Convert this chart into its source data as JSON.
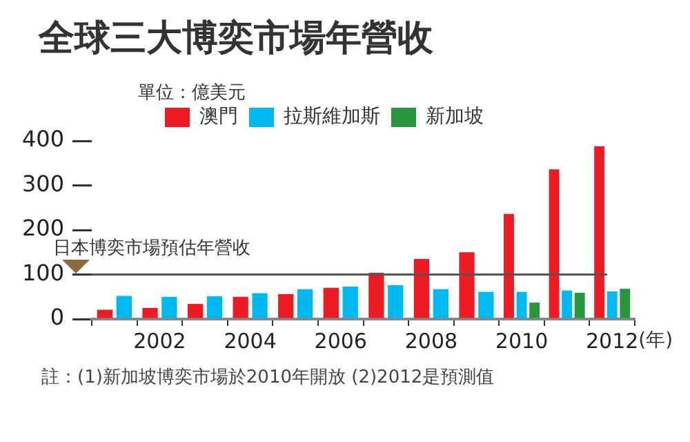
{
  "chart_data": {
    "type": "bar",
    "title": "全球三大博奕市場年營收",
    "subtitle": "單位：億美元",
    "xlabel": "(年)",
    "categories": [
      null,
      "2002",
      null,
      "2004",
      null,
      "2006",
      null,
      "2008",
      null,
      "2010",
      null,
      "2012"
    ],
    "series": [
      {
        "name": "澳門",
        "color": "#ed1c24",
        "values": [
          21,
          25,
          34,
          50,
          56,
          70,
          104,
          135,
          150,
          236,
          336,
          388
        ]
      },
      {
        "name": "拉斯維加斯",
        "color": "#00b9f1",
        "values": [
          52,
          50,
          51,
          58,
          67,
          73,
          76,
          67,
          61,
          61,
          64,
          62
        ]
      },
      {
        "name": "新加坡",
        "color": "#27963c",
        "values": [
          null,
          null,
          null,
          null,
          null,
          null,
          null,
          null,
          null,
          37,
          59,
          68
        ]
      }
    ],
    "ylim": [
      0,
      400
    ],
    "yticks": [
      0,
      100,
      200,
      300,
      400
    ],
    "grid": false,
    "legend": "top",
    "ref_lines": [
      {
        "axis": "y",
        "value": 100,
        "label": "日本博奕市場預估年營收",
        "color": "#555555"
      }
    ],
    "annotations": [
      "註：(1)新加坡博奕市場於2010年開放  (2)2012是預測值"
    ]
  }
}
